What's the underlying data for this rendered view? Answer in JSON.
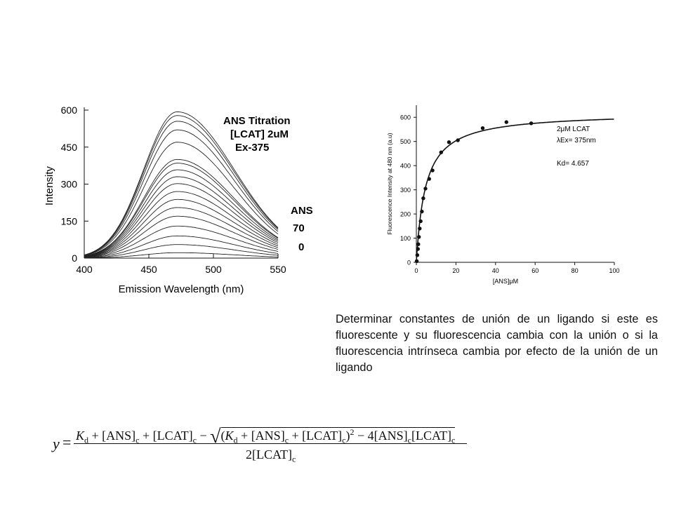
{
  "chart_data": [
    {
      "type": "line",
      "xlabel": "Emission Wavelength (nm)",
      "ylabel": "Intensity",
      "xlim": [
        400,
        550
      ],
      "ylim": [
        0,
        600
      ],
      "xticks": [
        400,
        450,
        500,
        550
      ],
      "yticks": [
        0,
        150,
        300,
        450,
        600
      ],
      "annotation": [
        "ANS Titration",
        "[LCAT] 2uM",
        "Ex-375"
      ],
      "legend_title": "ANS",
      "legend_values": [
        "70",
        "0"
      ],
      "peak_wavelength": 472,
      "curve_peaks": [
        593,
        578,
        555,
        520,
        470,
        400,
        385,
        358,
        330,
        302,
        270,
        238,
        205,
        170,
        130,
        90,
        55,
        22
      ],
      "grid": false
    },
    {
      "type": "scatter",
      "xlabel": "[ANS]μM",
      "ylabel": "Fluorescence Intensity at 480 nm (a.u)",
      "xlim": [
        0,
        100
      ],
      "ylim": [
        0,
        650
      ],
      "xticks": [
        0,
        20,
        40,
        60,
        80,
        100
      ],
      "yticks": [
        0,
        100,
        200,
        300,
        400,
        500,
        600
      ],
      "annotation": [
        "2μM LCAT",
        "λEx= 375nm",
        "Kd= 4.657"
      ],
      "points": [
        [
          0.2,
          5
        ],
        [
          0.5,
          30
        ],
        [
          0.8,
          55
        ],
        [
          1,
          75
        ],
        [
          1.3,
          105
        ],
        [
          1.7,
          140
        ],
        [
          2.2,
          170
        ],
        [
          2.8,
          210
        ],
        [
          3.5,
          265
        ],
        [
          4.6,
          305
        ],
        [
          6.5,
          345
        ],
        [
          8.2,
          380
        ],
        [
          12.5,
          455
        ],
        [
          16.5,
          497
        ],
        [
          21,
          505
        ],
        [
          33.5,
          555
        ],
        [
          45.5,
          580
        ],
        [
          58,
          575
        ]
      ],
      "fit": {
        "model": "hyperbola",
        "bmax": 620,
        "kd": 4.657
      },
      "grid": false
    }
  ],
  "paragraph": "Determinar constantes de unión de un ligando si este es fluorescente y su fluorescencia cambia con la unión o si la fluorescencia intrínseca cambia por efecto de la unión de un ligando",
  "formula": {
    "lhs": "y",
    "equals": "=",
    "Kd": "K",
    "d": "d",
    "plus": "+",
    "minus": "−",
    "ANS": "[ANS]",
    "LCAT": "[LCAT]",
    "c": "c",
    "two": "2",
    "four": "4",
    "open": "(",
    "close": ")",
    "sqrt": "√"
  }
}
